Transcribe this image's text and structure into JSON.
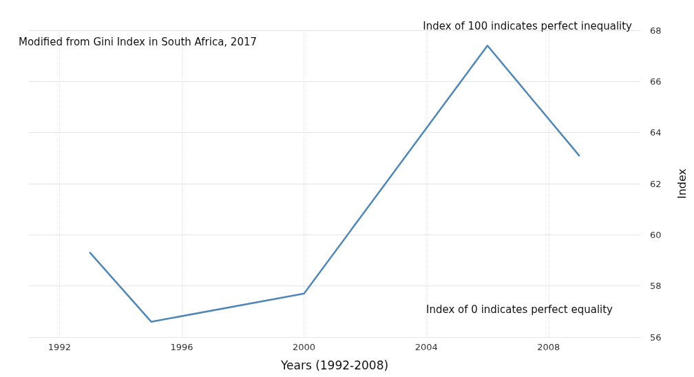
{
  "chart_data": {
    "type": "line",
    "title": "Modified from Gini Index in South Africa, 2017",
    "xlabel": "Years (1992-2008)",
    "ylabel": "Index",
    "annotations": [
      "Index of 100 indicates perfect inequality",
      "Index of 0 indicates perfect equality"
    ],
    "x": [
      1993,
      1995,
      2000,
      2006,
      2009
    ],
    "series": [
      {
        "color": "#4f86b5",
        "values": [
          59.3,
          56.6,
          57.7,
          67.4,
          63.1
        ]
      }
    ],
    "xlim": [
      1991,
      2011
    ],
    "xticks": [
      1992,
      1996,
      2000,
      2004,
      2008
    ],
    "ylim": [
      56,
      68
    ],
    "yticks": [
      56,
      58,
      60,
      62,
      64,
      66,
      68
    ],
    "grid": true,
    "marker": "none",
    "line_style": "solid"
  }
}
